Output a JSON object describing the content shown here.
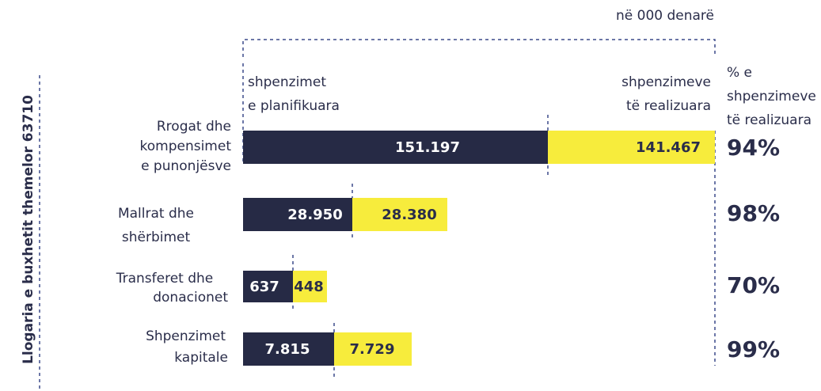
{
  "unit_note": "në 000 denarë",
  "axis_label": "Llogaria e buxhetit themelor 63710",
  "header": {
    "planned": [
      "shpenzimet",
      "e planifikuara"
    ],
    "realized": [
      "shpenzimeve",
      "të realizuara"
    ],
    "percent": [
      "% e",
      "shpenzimeve",
      "të realizuara"
    ]
  },
  "rows": [
    {
      "label": [
        "Rrogat dhe",
        "kompensimet",
        "e punonjësve"
      ],
      "planned": "151.197",
      "realized": "141.467",
      "percent": "94%"
    },
    {
      "label": [
        "Mallrat dhe",
        "shërbimet"
      ],
      "planned": "28.950",
      "realized": "28.380",
      "percent": "98%"
    },
    {
      "label": [
        "Transferet dhe",
        "donacionet"
      ],
      "planned": "637",
      "realized": "448",
      "percent": "70%"
    },
    {
      "label": [
        "Shpenzimet",
        "kapitale"
      ],
      "planned": "7.815",
      "realized": "7.729",
      "percent": "99%"
    }
  ]
}
